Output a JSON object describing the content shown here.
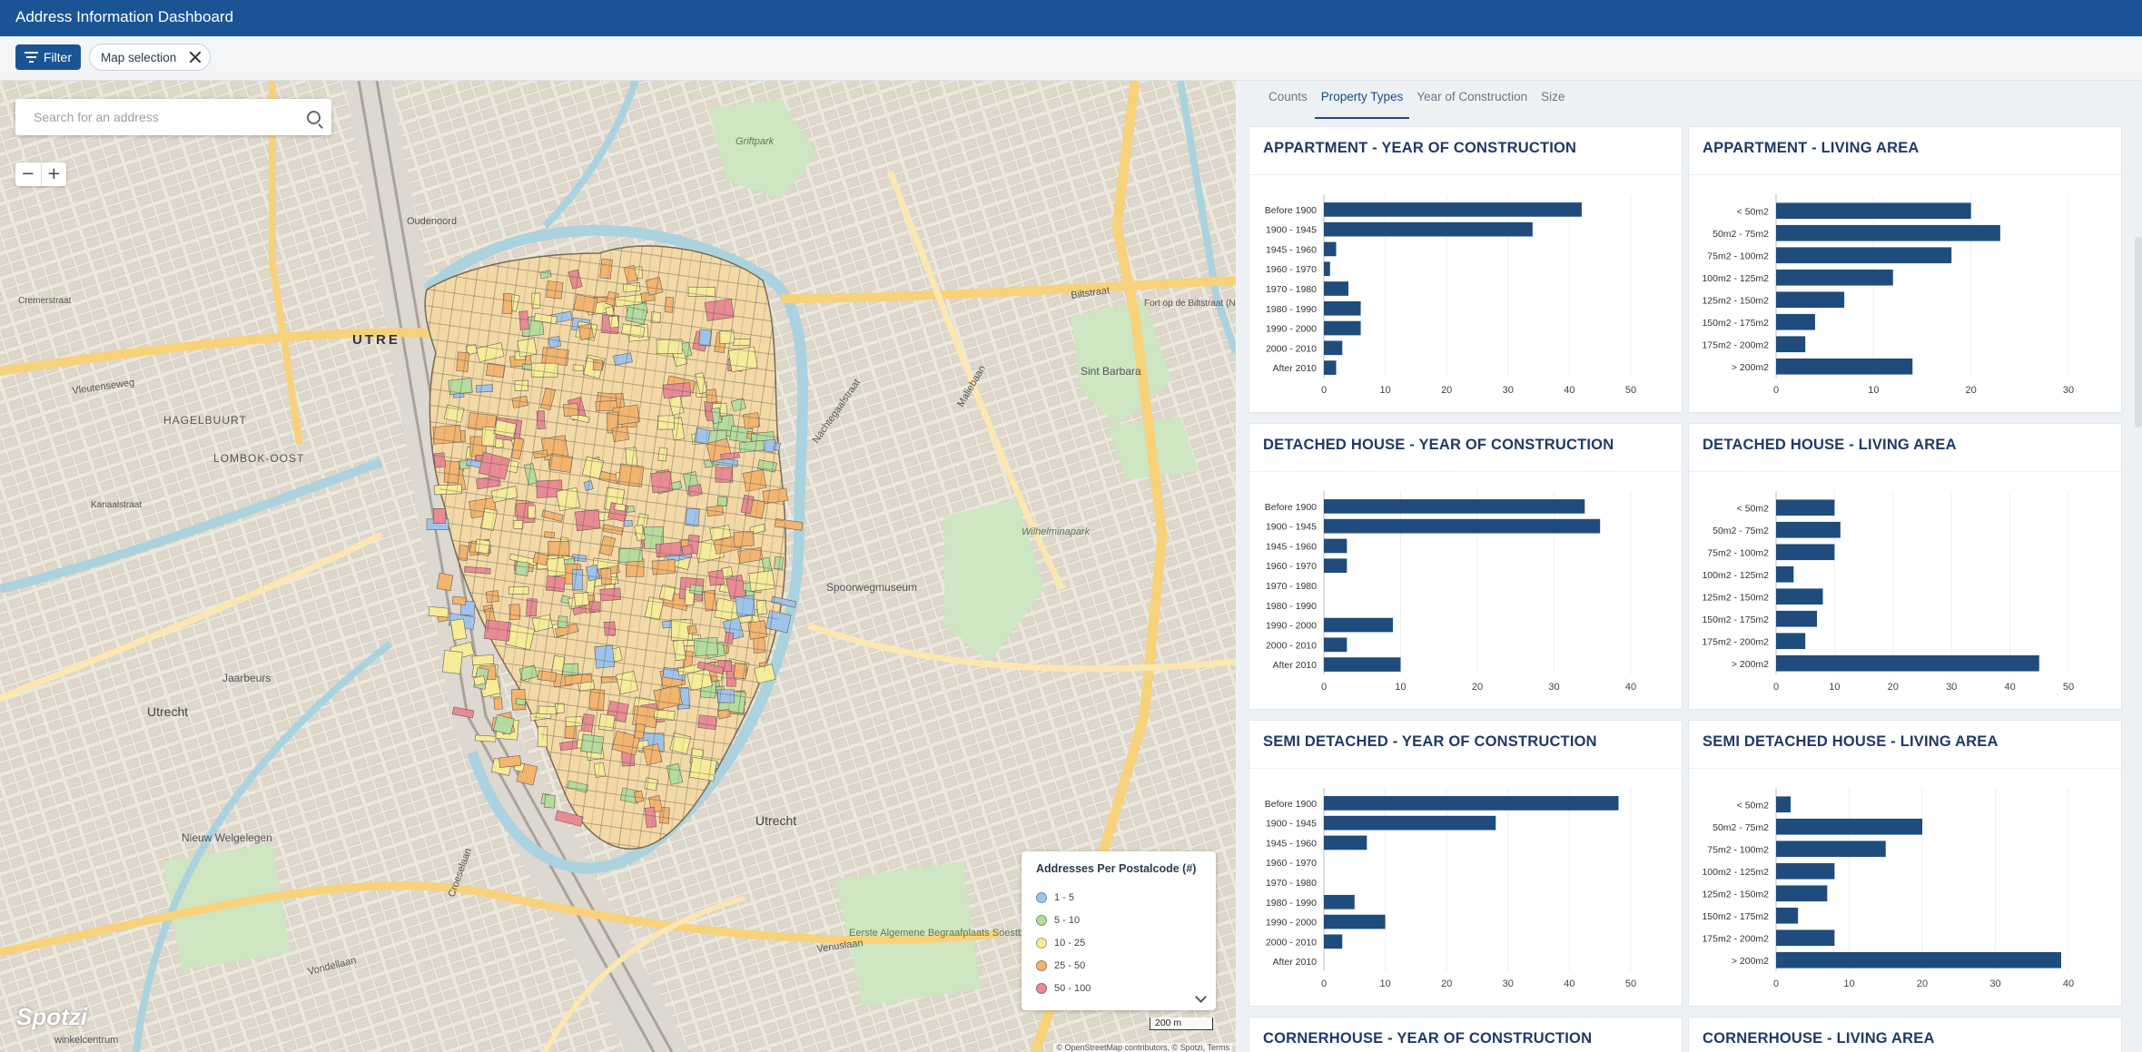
{
  "header": {
    "title": "Address Information Dashboard"
  },
  "filterbar": {
    "filter_label": "Filter",
    "chip_label": "Map selection"
  },
  "map": {
    "search_placeholder": "Search for an address",
    "zoom_out": "−",
    "zoom_in": "+",
    "legend": {
      "title": "Addresses Per Postalcode (#)",
      "items": [
        {
          "label": "1 - 5",
          "color": "#9fc4ec"
        },
        {
          "label": "5 - 10",
          "color": "#b4dc9c"
        },
        {
          "label": "10 - 25",
          "color": "#f6ec98"
        },
        {
          "label": "25 - 50",
          "color": "#f3b46e"
        },
        {
          "label": "50 - 100",
          "color": "#ea8a93"
        }
      ]
    },
    "scale_label": "200 m",
    "logo_text": "Spotzi",
    "attribution": "© OpenStreetMap contributors, © Spotzi, Terms",
    "labels": {
      "utrecht_city": "UTRE",
      "hagelbuurt": "HAGELBUURT",
      "lombok_oost": "LOMBOK-OOST",
      "utrecht_west": "Utrecht",
      "utrecht_south": "Utrecht",
      "jaarbeurs": "Jaarbeurs",
      "nieuw_welgelegen": "Nieuw Welgelegen",
      "spoorwegmuseum": "Spoorwegmuseum",
      "sint_barbara": "Sint Barbara",
      "eerste_begraafplaats": "Eerste Algemene Begraafplaats Soestbergen",
      "griftpark": "Griftpark",
      "winkelcentrum": "winkelcentrum",
      "fort_biltstraat": "Fort op de Biltstraat (NHW)",
      "wilhelminapark": "Wilhelminapark",
      "oudenoord": "Oudenoord",
      "vleutenseweg": "Vleutenseweg",
      "cremerstraat": "Cremerstraat",
      "kanaalstraat": "Kanaalstraat",
      "malieban": "Maliebaan",
      "nachtegaalstraat": "Nachtegaalstraat",
      "biltstraat": "Biltstraat",
      "vondellaan": "Vondellaan",
      "venuslaan": "Venuslaan",
      "croeselaan": "Croeselaan"
    }
  },
  "colors": {
    "brand": "#1a5494",
    "bar": "#1f4c7c",
    "panel_title": "#1f3a68"
  },
  "tabs": [
    {
      "label": "Counts",
      "active": false
    },
    {
      "label": "Property Types",
      "active": true
    },
    {
      "label": "Year of Construction",
      "active": false
    },
    {
      "label": "Size",
      "active": false
    }
  ],
  "chart_data": [
    {
      "type": "bar",
      "orientation": "horizontal",
      "title": "APPARTMENT - YEAR OF CONSTRUCTION",
      "categories": [
        "Before 1900",
        "1900 - 1945",
        "1945 - 1960",
        "1960 - 1970",
        "1970 - 1980",
        "1980 - 1990",
        "1990 - 2000",
        "2000 - 2010",
        "After 2010"
      ],
      "values": [
        42,
        34,
        2,
        1,
        4,
        6,
        6,
        3,
        2
      ],
      "xlim": [
        0,
        50
      ],
      "ticks": [
        0,
        10,
        20,
        30,
        40,
        50
      ]
    },
    {
      "type": "bar",
      "orientation": "horizontal",
      "title": "APPARTMENT - LIVING AREA",
      "categories": [
        "< 50m2",
        "50m2 - 75m2",
        "75m2 - 100m2",
        "100m2 - 125m2",
        "125m2 - 150m2",
        "150m2 - 175m2",
        "175m2 - 200m2",
        "> 200m2"
      ],
      "values": [
        20,
        23,
        18,
        12,
        7,
        4,
        3,
        14
      ],
      "xlim": [
        0,
        30
      ],
      "ticks": [
        0,
        10,
        20,
        30
      ]
    },
    {
      "type": "bar",
      "orientation": "horizontal",
      "title": "DETACHED HOUSE - YEAR OF CONSTRUCTION",
      "categories": [
        "Before 1900",
        "1900 - 1945",
        "1945 - 1960",
        "1960 - 1970",
        "1970 - 1980",
        "1980 - 1990",
        "1990 - 2000",
        "2000 - 2010",
        "After 2010"
      ],
      "values": [
        34,
        36,
        3,
        3,
        0,
        0,
        9,
        3,
        10
      ],
      "xlim": [
        0,
        40
      ],
      "ticks": [
        0,
        10,
        20,
        30,
        40
      ]
    },
    {
      "type": "bar",
      "orientation": "horizontal",
      "title": "DETACHED HOUSE - LIVING AREA",
      "categories": [
        "< 50m2",
        "50m2 - 75m2",
        "75m2 - 100m2",
        "100m2 - 125m2",
        "125m2 - 150m2",
        "150m2 - 175m2",
        "175m2 - 200m2",
        "> 200m2"
      ],
      "values": [
        10,
        11,
        10,
        3,
        8,
        7,
        5,
        45
      ],
      "xlim": [
        0,
        50
      ],
      "ticks": [
        0,
        10,
        20,
        30,
        40,
        50
      ]
    },
    {
      "type": "bar",
      "orientation": "horizontal",
      "title": "SEMI DETACHED - YEAR OF CONSTRUCTION",
      "categories": [
        "Before 1900",
        "1900 - 1945",
        "1945 - 1960",
        "1960 - 1970",
        "1970 - 1980",
        "1980 - 1990",
        "1990 - 2000",
        "2000 - 2010",
        "After 2010"
      ],
      "values": [
        48,
        28,
        7,
        0,
        0,
        5,
        10,
        3,
        0
      ],
      "xlim": [
        0,
        50
      ],
      "ticks": [
        0,
        10,
        20,
        30,
        40,
        50
      ]
    },
    {
      "type": "bar",
      "orientation": "horizontal",
      "title": "SEMI DETACHED HOUSE - LIVING AREA",
      "categories": [
        "< 50m2",
        "50m2 - 75m2",
        "75m2 - 100m2",
        "100m2 - 125m2",
        "125m2 - 150m2",
        "150m2 - 175m2",
        "175m2 - 200m2",
        "> 200m2"
      ],
      "values": [
        2,
        20,
        15,
        8,
        7,
        3,
        8,
        39
      ],
      "xlim": [
        0,
        40
      ],
      "ticks": [
        0,
        10,
        20,
        30,
        40
      ]
    },
    {
      "type": "bar",
      "orientation": "horizontal",
      "title": "CORNERHOUSE - YEAR OF CONSTRUCTION",
      "categories": [],
      "values": []
    },
    {
      "type": "bar",
      "orientation": "horizontal",
      "title": "CORNERHOUSE - LIVING AREA",
      "categories": [],
      "values": []
    }
  ]
}
